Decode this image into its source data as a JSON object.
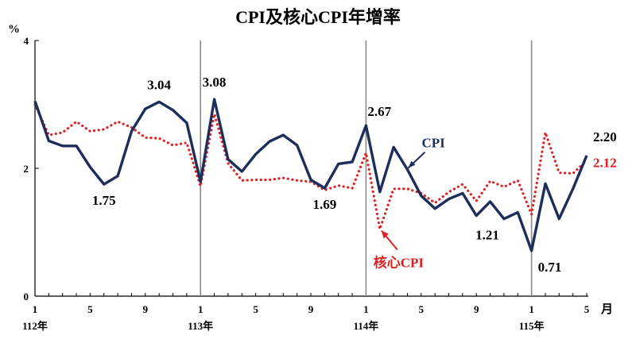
{
  "chart_data": {
    "type": "line",
    "title": "CPI及核心CPI年增率",
    "y_unit": "%",
    "x_unit": "月",
    "ylim": [
      0,
      4
    ],
    "yticks": [
      "0",
      "2",
      "4"
    ],
    "month_ticks": [
      {
        "index": 0,
        "label": "1"
      },
      {
        "index": 4,
        "label": "5"
      },
      {
        "index": 8,
        "label": "9"
      },
      {
        "index": 12,
        "label": "1"
      },
      {
        "index": 16,
        "label": "5"
      },
      {
        "index": 20,
        "label": "9"
      },
      {
        "index": 24,
        "label": "1"
      },
      {
        "index": 28,
        "label": "5"
      },
      {
        "index": 32,
        "label": "9"
      },
      {
        "index": 36,
        "label": "1"
      },
      {
        "index": 40,
        "label": "5"
      }
    ],
    "year_labels": [
      {
        "index": 0,
        "label": "112年"
      },
      {
        "index": 12,
        "label": "113年"
      },
      {
        "index": 24,
        "label": "114年"
      },
      {
        "index": 36,
        "label": "115年"
      }
    ],
    "year_dividers": [
      12,
      24,
      36
    ],
    "series": [
      {
        "name": "CPI",
        "color": "#1c2e5a",
        "style": "solid",
        "values": [
          3.05,
          2.43,
          2.35,
          2.35,
          2.02,
          1.75,
          1.88,
          2.58,
          2.93,
          3.04,
          2.91,
          2.71,
          1.79,
          3.08,
          2.14,
          1.95,
          2.22,
          2.42,
          2.52,
          2.36,
          1.82,
          1.69,
          2.07,
          2.1,
          2.67,
          1.63,
          2.33,
          1.98,
          1.57,
          1.37,
          1.52,
          1.61,
          1.26,
          1.48,
          1.21,
          1.31,
          0.71,
          1.76,
          1.21,
          1.68,
          2.2
        ]
      },
      {
        "name": "核心CPI",
        "color": "#e02020",
        "style": "dotted",
        "values": [
          3.0,
          2.52,
          2.56,
          2.73,
          2.58,
          2.61,
          2.73,
          2.64,
          2.48,
          2.47,
          2.36,
          2.4,
          1.72,
          2.85,
          2.08,
          1.81,
          1.82,
          1.82,
          1.85,
          1.81,
          1.79,
          1.66,
          1.73,
          1.69,
          2.24,
          1.05,
          1.68,
          1.68,
          1.61,
          1.46,
          1.63,
          1.75,
          1.49,
          1.8,
          1.71,
          1.81,
          1.28,
          2.56,
          1.93,
          1.92,
          2.12
        ]
      }
    ],
    "annotations": [
      {
        "index": 5,
        "series": 0,
        "text": "1.75",
        "pos": "below"
      },
      {
        "index": 9,
        "series": 0,
        "text": "3.04",
        "pos": "above"
      },
      {
        "index": 13,
        "series": 0,
        "text": "3.08",
        "pos": "above"
      },
      {
        "index": 21,
        "series": 0,
        "text": "1.69",
        "pos": "below"
      },
      {
        "index": 24,
        "series": 0,
        "text": "2.67",
        "pos": "above-right"
      },
      {
        "index": 34,
        "series": 0,
        "text": "1.21",
        "pos": "below-left"
      },
      {
        "index": 36,
        "series": 0,
        "text": "0.71",
        "pos": "below-right"
      },
      {
        "index": 40,
        "series": 0,
        "text": "2.20",
        "pos": "above-right"
      },
      {
        "index": 40,
        "series": 1,
        "text": "2.12",
        "pos": "right"
      }
    ],
    "series_labels": [
      {
        "series": 0,
        "text": "CPI"
      },
      {
        "series": 1,
        "text": "核心CPI"
      }
    ]
  }
}
